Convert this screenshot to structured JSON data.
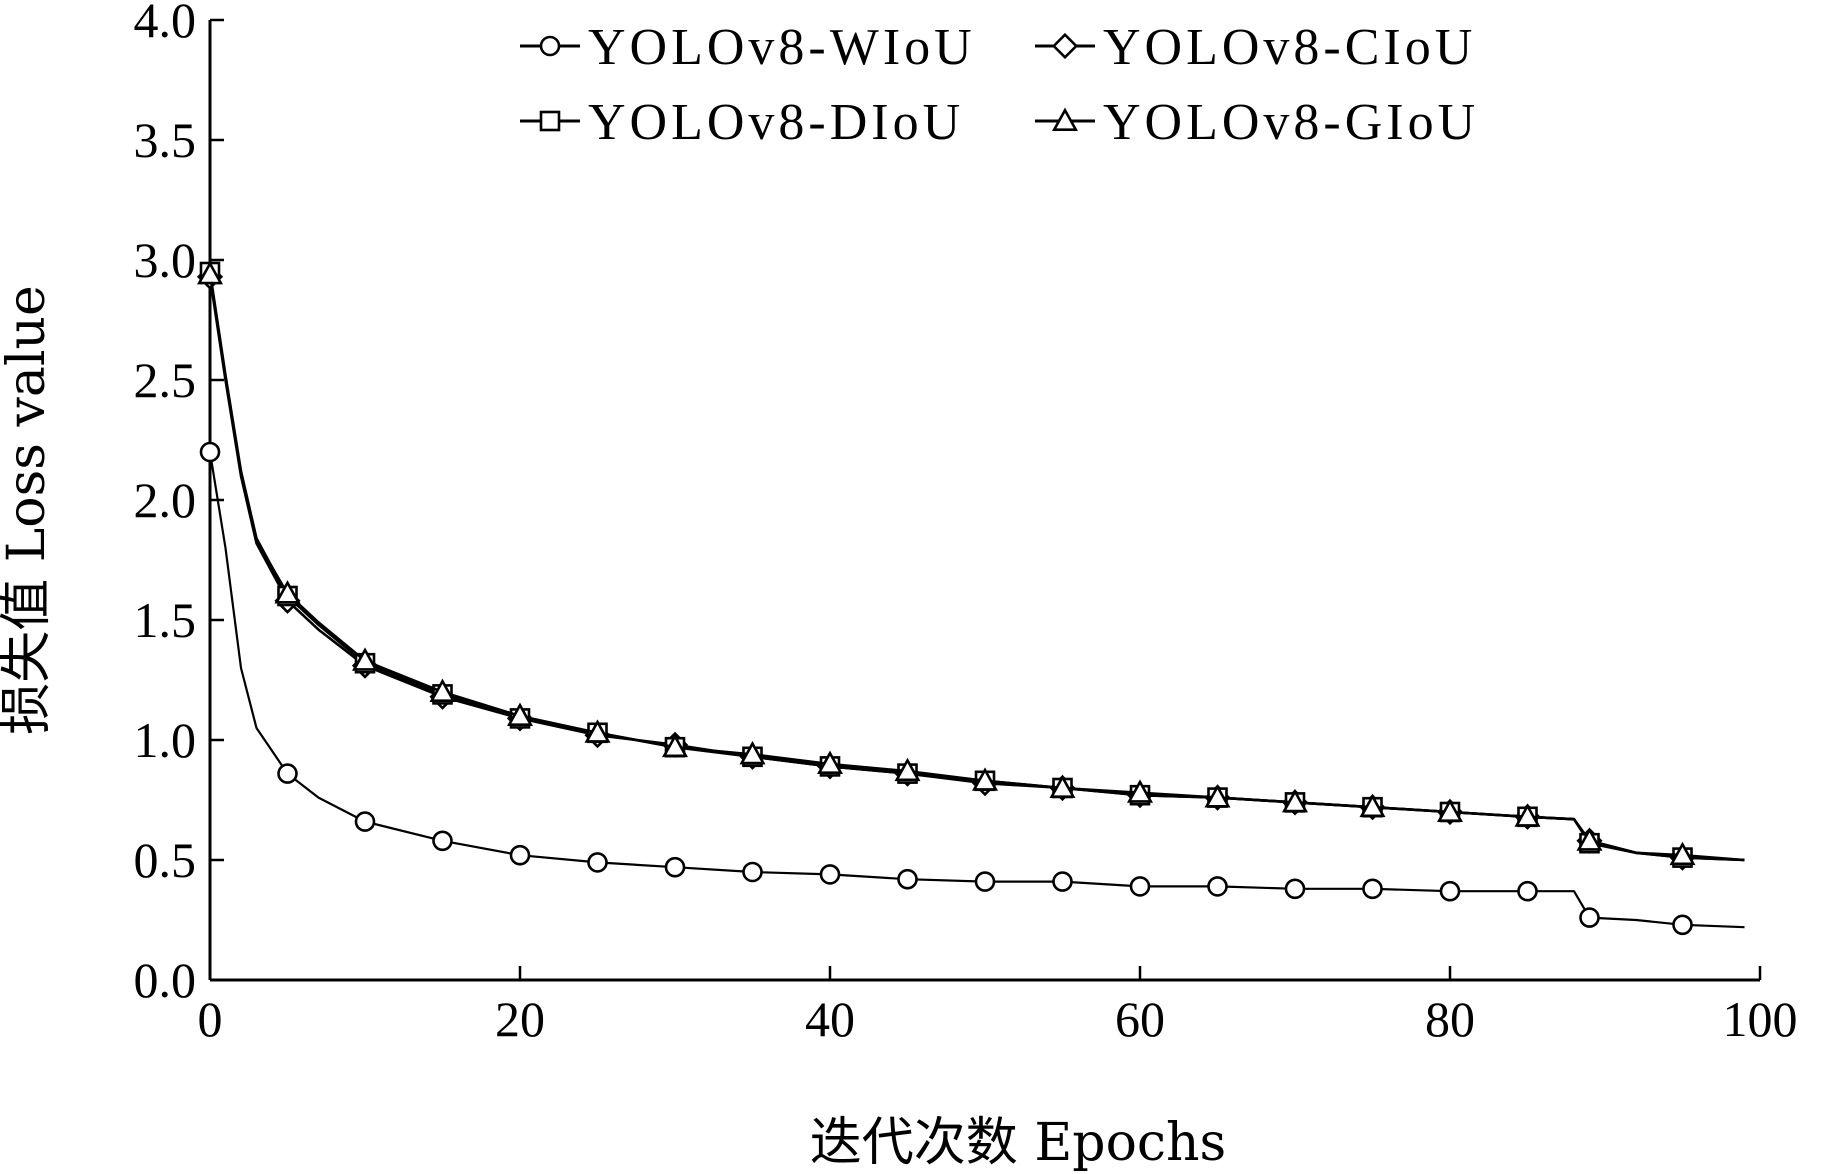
{
  "chart_data": {
    "type": "line",
    "title": "",
    "xlabel": "迭代次数 Epochs",
    "ylabel": "损失值 Loss value",
    "xlim": [
      0,
      100
    ],
    "ylim": [
      0,
      4
    ],
    "xticks": [
      0,
      20,
      40,
      60,
      80,
      100
    ],
    "yticks": [
      0.0,
      0.5,
      1.0,
      1.5,
      2.0,
      2.5,
      3.0,
      3.5,
      4.0
    ],
    "xtick_labels": [
      "0",
      "20",
      "40",
      "60",
      "80",
      "100"
    ],
    "ytick_labels": [
      "0.0",
      "0.5",
      "1.0",
      "1.5",
      "2.0",
      "2.5",
      "3.0",
      "3.5",
      "4.0"
    ],
    "grid": false,
    "legend_position": "top",
    "series": [
      {
        "name": "YOLOv8-WIoU",
        "marker": "circle",
        "x": [
          0,
          1,
          2,
          3,
          5,
          7,
          10,
          15,
          20,
          25,
          30,
          35,
          40,
          45,
          50,
          55,
          60,
          65,
          70,
          75,
          80,
          85,
          88,
          89,
          92,
          95,
          99
        ],
        "y": [
          2.2,
          1.8,
          1.3,
          1.05,
          0.86,
          0.76,
          0.66,
          0.58,
          0.52,
          0.49,
          0.47,
          0.45,
          0.44,
          0.42,
          0.41,
          0.41,
          0.39,
          0.39,
          0.38,
          0.38,
          0.37,
          0.37,
          0.37,
          0.26,
          0.25,
          0.23,
          0.22
        ],
        "marker_x": [
          0,
          5,
          10,
          15,
          20,
          25,
          30,
          35,
          40,
          45,
          50,
          55,
          60,
          65,
          70,
          75,
          80,
          85,
          89,
          95
        ]
      },
      {
        "name": "YOLOv8-CIoU",
        "marker": "diamond",
        "x": [
          0,
          1,
          2,
          3,
          5,
          7,
          10,
          15,
          20,
          25,
          30,
          35,
          40,
          45,
          50,
          55,
          60,
          65,
          70,
          75,
          80,
          85,
          88,
          89,
          92,
          95,
          99
        ],
        "y": [
          2.93,
          2.5,
          2.1,
          1.82,
          1.58,
          1.46,
          1.31,
          1.18,
          1.09,
          1.02,
          0.98,
          0.93,
          0.89,
          0.86,
          0.82,
          0.8,
          0.77,
          0.76,
          0.74,
          0.72,
          0.7,
          0.68,
          0.67,
          0.58,
          0.53,
          0.51,
          0.5
        ],
        "marker_x": [
          0,
          5,
          10,
          15,
          20,
          25,
          30,
          35,
          40,
          45,
          50,
          55,
          60,
          65,
          70,
          75,
          80,
          85,
          89,
          95
        ]
      },
      {
        "name": "YOLOv8-DIoU",
        "marker": "square",
        "x": [
          0,
          1,
          2,
          3,
          5,
          7,
          10,
          15,
          20,
          25,
          30,
          35,
          40,
          45,
          50,
          55,
          60,
          65,
          70,
          75,
          80,
          85,
          88,
          89,
          92,
          95,
          99
        ],
        "y": [
          2.95,
          2.52,
          2.12,
          1.84,
          1.6,
          1.48,
          1.32,
          1.19,
          1.09,
          1.03,
          0.97,
          0.93,
          0.89,
          0.86,
          0.83,
          0.8,
          0.77,
          0.76,
          0.74,
          0.72,
          0.7,
          0.68,
          0.67,
          0.57,
          0.53,
          0.51,
          0.5
        ],
        "marker_x": [
          0,
          5,
          10,
          15,
          20,
          25,
          30,
          35,
          40,
          45,
          50,
          55,
          60,
          65,
          70,
          75,
          80,
          85,
          89,
          95
        ]
      },
      {
        "name": "YOLOv8-GIoU",
        "marker": "triangle",
        "x": [
          0,
          1,
          2,
          3,
          5,
          7,
          10,
          15,
          20,
          25,
          30,
          35,
          40,
          45,
          50,
          55,
          60,
          65,
          70,
          75,
          80,
          85,
          88,
          89,
          92,
          95,
          99
        ],
        "y": [
          2.94,
          2.51,
          2.11,
          1.83,
          1.61,
          1.49,
          1.33,
          1.2,
          1.1,
          1.03,
          0.97,
          0.94,
          0.9,
          0.87,
          0.83,
          0.8,
          0.78,
          0.76,
          0.74,
          0.72,
          0.7,
          0.68,
          0.67,
          0.58,
          0.53,
          0.52,
          0.5
        ],
        "marker_x": [
          0,
          5,
          10,
          15,
          20,
          25,
          30,
          35,
          40,
          45,
          50,
          55,
          60,
          65,
          70,
          75,
          80,
          85,
          89,
          95
        ]
      }
    ]
  },
  "colors": {
    "line": "#000000",
    "marker_fill": "#ffffff",
    "background": "#ffffff"
  }
}
